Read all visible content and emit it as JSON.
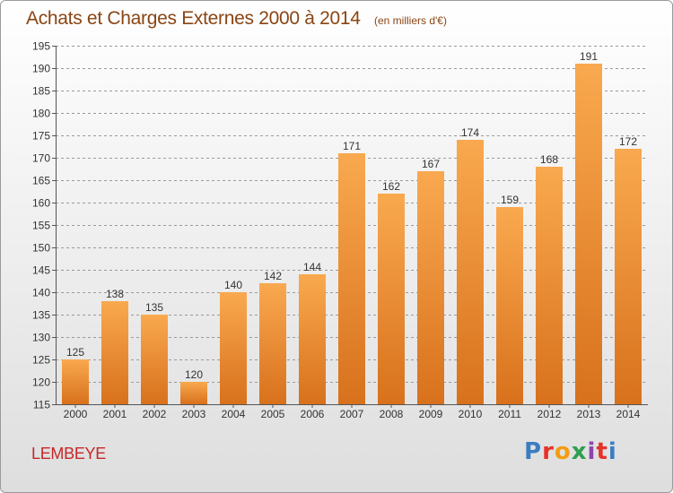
{
  "header": {
    "title": "Achats et Charges Externes 2000 à 2014",
    "unit": "(en milliers d'€)"
  },
  "footer": {
    "commune": "LEMBEYE",
    "logo": "Proxiti"
  },
  "colors": {
    "title": "#8a4513",
    "commune": "#c62828",
    "bar_light": "#f9a94f",
    "bar_dark": "#d8711c",
    "grid": "#9a9a9a"
  },
  "chart_data": {
    "type": "bar",
    "categories": [
      "2000",
      "2001",
      "2002",
      "2003",
      "2004",
      "2005",
      "2006",
      "2007",
      "2008",
      "2009",
      "2010",
      "2011",
      "2012",
      "2013",
      "2014"
    ],
    "values": [
      125,
      138,
      135,
      120,
      140,
      142,
      144,
      171,
      162,
      167,
      174,
      159,
      168,
      191,
      172
    ],
    "ylim": [
      115,
      195
    ],
    "yticks": [
      115,
      120,
      125,
      130,
      135,
      140,
      145,
      150,
      155,
      160,
      165,
      170,
      175,
      180,
      185,
      190,
      195
    ],
    "grid": true,
    "data_labels": true
  }
}
